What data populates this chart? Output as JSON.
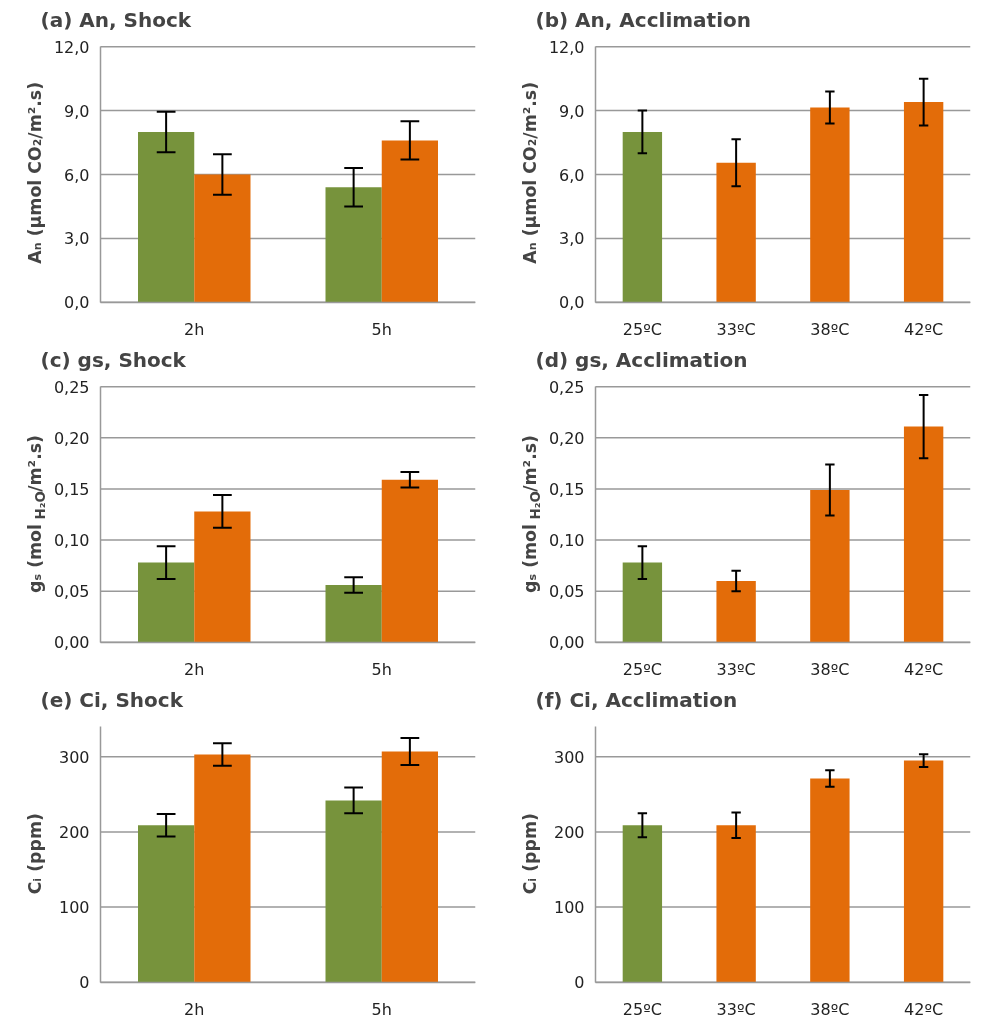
{
  "chart_data": [
    {
      "type": "bar",
      "title": "(a) An, Shock",
      "ylabel": "Aₙ (µmol CO₂/m².s)",
      "categories": [
        "2h",
        "5h"
      ],
      "series": [
        {
          "color": "#77933c",
          "values": [
            8.0,
            5.4
          ],
          "errors": [
            0.95,
            0.9
          ]
        },
        {
          "color": "#e36c09",
          "values": [
            6.0,
            7.6
          ],
          "errors": [
            0.95,
            0.9
          ]
        }
      ],
      "ylim": [
        0,
        12
      ],
      "yticks": [
        {
          "value": 0,
          "label": "0,0"
        },
        {
          "value": 3,
          "label": "3,0"
        },
        {
          "value": 6,
          "label": "6,0"
        },
        {
          "value": 9,
          "label": "9,0"
        },
        {
          "value": 12,
          "label": "12,0"
        }
      ],
      "grid": "y"
    },
    {
      "type": "bar",
      "title": "(b) An, Acclimation",
      "ylabel": "Aₙ (µmol CO₂/m².s)",
      "categories": [
        "25ºC",
        "33ºC",
        "38ºC",
        "42ºC"
      ],
      "values": [
        8.0,
        6.55,
        9.15,
        9.4
      ],
      "colors": [
        "#77933c",
        "#e36c09",
        "#e36c09",
        "#e36c09"
      ],
      "errors": [
        1.0,
        1.1,
        0.75,
        1.1
      ],
      "ylim": [
        0,
        12
      ],
      "yticks": [
        {
          "value": 0,
          "label": "0,0"
        },
        {
          "value": 3,
          "label": "3,0"
        },
        {
          "value": 6,
          "label": "6,0"
        },
        {
          "value": 9,
          "label": "9,0"
        },
        {
          "value": 12,
          "label": "12,0"
        }
      ],
      "grid": "y"
    },
    {
      "type": "bar",
      "title": "(c) gs, Shock",
      "ylabel": "gₛ (mol $_{H₂O}$/m².s)",
      "categories": [
        "2h",
        "5h"
      ],
      "series": [
        {
          "color": "#77933c",
          "values": [
            0.078,
            0.056
          ],
          "errors": [
            0.016,
            0.0075
          ]
        },
        {
          "color": "#e36c09",
          "values": [
            0.128,
            0.159
          ],
          "errors": [
            0.016,
            0.0075
          ]
        }
      ],
      "ylim": [
        0,
        0.25
      ],
      "yticks": [
        {
          "value": 0,
          "label": "0,00"
        },
        {
          "value": 0.05,
          "label": "0,05"
        },
        {
          "value": 0.1,
          "label": "0,10"
        },
        {
          "value": 0.15,
          "label": "0,15"
        },
        {
          "value": 0.2,
          "label": "0,20"
        },
        {
          "value": 0.25,
          "label": "0,25"
        }
      ],
      "grid": "y"
    },
    {
      "type": "bar",
      "title": "(d) gs, Acclimation",
      "ylabel": "gₛ (mol $_{H₂O}$/m².s)",
      "categories": [
        "25ºC",
        "33ºC",
        "38ºC",
        "42ºC"
      ],
      "values": [
        0.078,
        0.06,
        0.149,
        0.211
      ],
      "colors": [
        "#77933c",
        "#e36c09",
        "#e36c09",
        "#e36c09"
      ],
      "errors": [
        0.016,
        0.01,
        0.025,
        0.031
      ],
      "ylim": [
        0,
        0.25
      ],
      "yticks": [
        {
          "value": 0,
          "label": "0,00"
        },
        {
          "value": 0.05,
          "label": "0,05"
        },
        {
          "value": 0.1,
          "label": "0,10"
        },
        {
          "value": 0.15,
          "label": "0,15"
        },
        {
          "value": 0.2,
          "label": "0,20"
        },
        {
          "value": 0.25,
          "label": "0,25"
        }
      ],
      "grid": "y"
    },
    {
      "type": "bar",
      "title": "(e) Ci, Shock",
      "ylabel": "Cᵢ (ppm)",
      "categories": [
        "2h",
        "5h"
      ],
      "series": [
        {
          "color": "#77933c",
          "values": [
            209,
            242
          ],
          "errors": [
            15,
            17
          ]
        },
        {
          "color": "#e36c09",
          "values": [
            303,
            307
          ],
          "errors": [
            15,
            18
          ]
        }
      ],
      "ylim": [
        0,
        340
      ],
      "yticks": [
        0,
        100,
        200,
        300
      ],
      "grid": "y"
    },
    {
      "type": "bar",
      "title": "(f) Ci, Acclimation",
      "ylabel": "Cᵢ (ppm)",
      "categories": [
        "25ºC",
        "33ºC",
        "38ºC",
        "42ºC"
      ],
      "values": [
        209,
        209,
        271,
        295
      ],
      "colors": [
        "#77933c",
        "#e36c09",
        "#e36c09",
        "#e36c09"
      ],
      "errors": [
        16,
        17,
        11,
        8.5
      ],
      "ylim": [
        0,
        340
      ],
      "yticks": [
        0,
        100,
        200,
        300
      ],
      "grid": "y"
    }
  ]
}
